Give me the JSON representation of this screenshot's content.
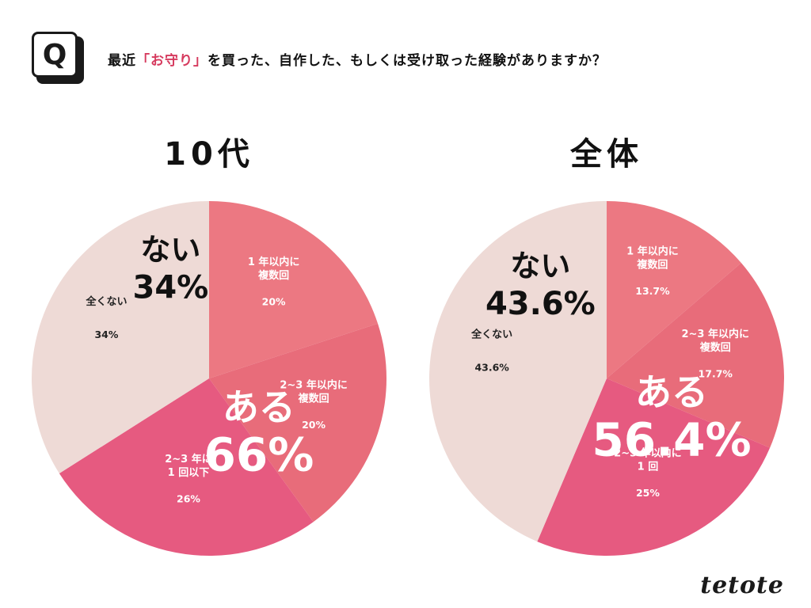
{
  "question": {
    "badge": "Q",
    "prefix": "最近",
    "highlight": "「お守り」",
    "suffix": "を買った、自作した、もしくは受け取った経験がありますか？"
  },
  "chart_data": [
    {
      "type": "pie",
      "title": "10代",
      "series": [
        {
          "label": [
            "1 年以内に",
            "複数回"
          ],
          "value": 20,
          "display": "20%",
          "color": "#ec7882"
        },
        {
          "label": [
            "2~3 年以内に",
            "複数回"
          ],
          "value": 20,
          "display": "20%",
          "color": "#e86c7a"
        },
        {
          "label": [
            "2~3 年に",
            "1 回以下"
          ],
          "value": 26,
          "display": "26%",
          "color": "#e65a80"
        },
        {
          "label": [
            "全くない"
          ],
          "value": 34,
          "display": "34%",
          "color": "#eedad6"
        }
      ],
      "group_labels": {
        "yes": {
          "label": "ある",
          "value": "66%"
        },
        "no": {
          "label": "ない",
          "value": "34%"
        }
      }
    },
    {
      "type": "pie",
      "title": "全体",
      "series": [
        {
          "label": [
            "1 年以内に",
            "複数回"
          ],
          "value": 13.7,
          "display": "13.7%",
          "color": "#ec7882"
        },
        {
          "label": [
            "2~3 年以内に",
            "複数回"
          ],
          "value": 17.7,
          "display": "17.7%",
          "color": "#e86c7a"
        },
        {
          "label": [
            "2~3 年以内に",
            "1 回"
          ],
          "value": 25,
          "display": "25%",
          "color": "#e65a80"
        },
        {
          "label": [
            "全くない"
          ],
          "value": 43.6,
          "display": "43.6%",
          "color": "#eedad6"
        }
      ],
      "group_labels": {
        "yes": {
          "label": "ある",
          "value": "56.4%"
        },
        "no": {
          "label": "ない",
          "value": "43.6%"
        }
      }
    }
  ],
  "brand": {
    "logo": "tetote"
  }
}
